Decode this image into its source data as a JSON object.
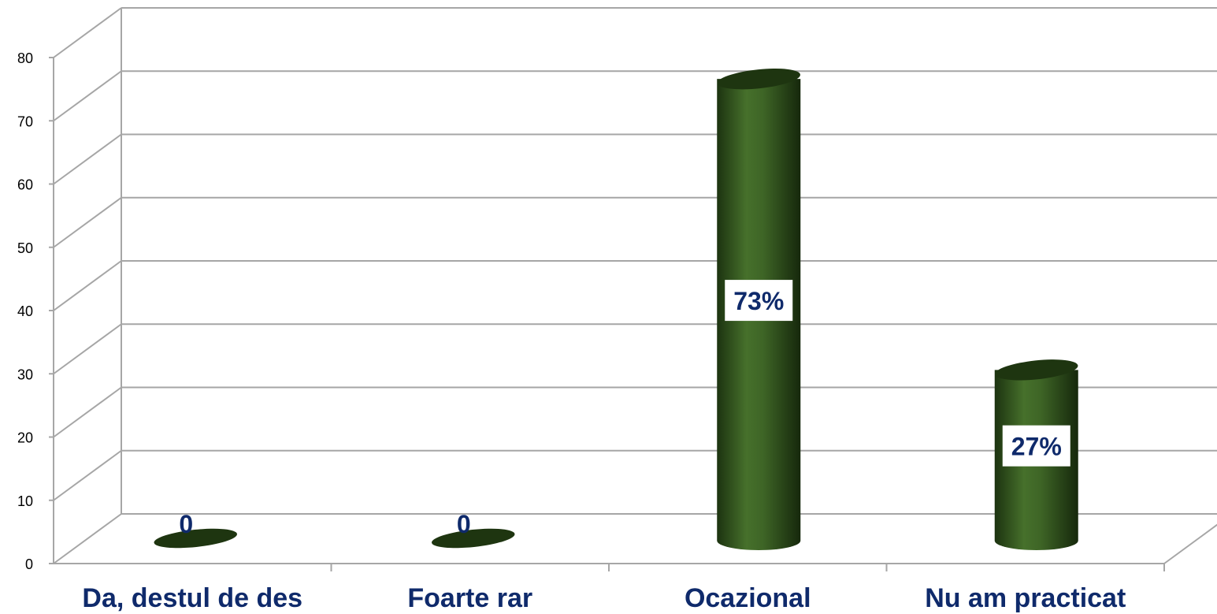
{
  "chart_data": {
    "type": "bar",
    "style": "3d-cylinder",
    "categories": [
      "Da, destul de des",
      "Foarte rar",
      "Ocazional",
      "Nu am practicat"
    ],
    "values": [
      0,
      0,
      73,
      27
    ],
    "data_labels": [
      "0",
      "0",
      "73%",
      "27%"
    ],
    "y_ticks": [
      "0",
      "10",
      "20",
      "30",
      "40",
      "50",
      "60",
      "70",
      "80"
    ],
    "ylim": [
      0,
      80
    ],
    "grid": true,
    "legend": "none",
    "colors": {
      "bar": "#3b5e22",
      "bar_dark": "#1e3510",
      "grid": "#a6a6a6",
      "label_text": "#0f2a6b",
      "label_box": "#ffffff"
    }
  }
}
